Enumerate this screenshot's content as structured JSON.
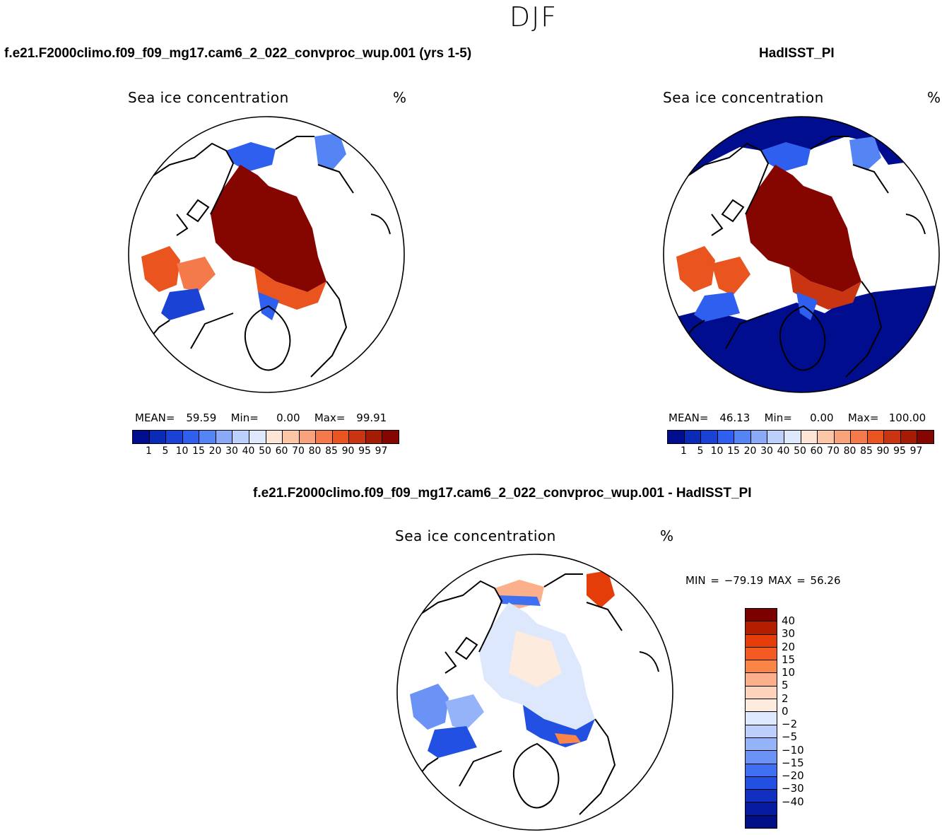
{
  "season": "DJF",
  "panels": {
    "model": {
      "title": "f.e21.F2000climo.f09_f09_mg17.cam6_2_022_convproc_wup.001 (yrs 1-5)",
      "variable": "Sea ice concentration",
      "units": "%",
      "stats": {
        "mean_label": "MEAN=",
        "mean": "59.59",
        "min_label": "Min=",
        "min": "0.00",
        "max_label": "Max=",
        "max": "99.91"
      }
    },
    "obs": {
      "title": "HadISST_PI",
      "variable": "Sea ice concentration",
      "units": "%",
      "stats": {
        "mean_label": "MEAN=",
        "mean": "46.13",
        "min_label": "Min=",
        "min": "0.00",
        "max_label": "Max=",
        "max": "100.00"
      }
    },
    "diff": {
      "title": "f.e21.F2000climo.f09_f09_mg17.cam6_2_022_convproc_wup.001 - HadISST_PI",
      "variable": "Sea ice concentration",
      "units": "%",
      "stats": {
        "text": "MIN = −79.19 MAX =  56.26"
      }
    }
  },
  "abs_colorbar": {
    "colors": [
      "#000d8f",
      "#0a2bb5",
      "#1a43d6",
      "#2f5fef",
      "#5585f5",
      "#8aaaf8",
      "#bcd0fb",
      "#dde8fd",
      "#fde6d6",
      "#fcc7a6",
      "#f9a27b",
      "#f47a4c",
      "#e9541f",
      "#c93510",
      "#a41c06",
      "#850500"
    ],
    "ticks": [
      "1",
      "5",
      "10",
      "15",
      "20",
      "30",
      "40",
      "50",
      "60",
      "70",
      "80",
      "85",
      "90",
      "95",
      "97"
    ]
  },
  "diff_colorbar": {
    "colors": [
      "#7a0100",
      "#b31d00",
      "#e43d09",
      "#f55a22",
      "#fb8447",
      "#fbb08b",
      "#fdd3bb",
      "#fdebdd",
      "#dde8fd",
      "#bcd0fb",
      "#95b3f9",
      "#6b93f6",
      "#3f70f2",
      "#2150e3",
      "#1130c2",
      "#061ba2",
      "#000f85"
    ],
    "ticks": [
      "40",
      "30",
      "20",
      "15",
      "10",
      "5",
      "2",
      "0",
      "−2",
      "−5",
      "−10",
      "−15",
      "−20",
      "−30",
      "−40"
    ]
  }
}
